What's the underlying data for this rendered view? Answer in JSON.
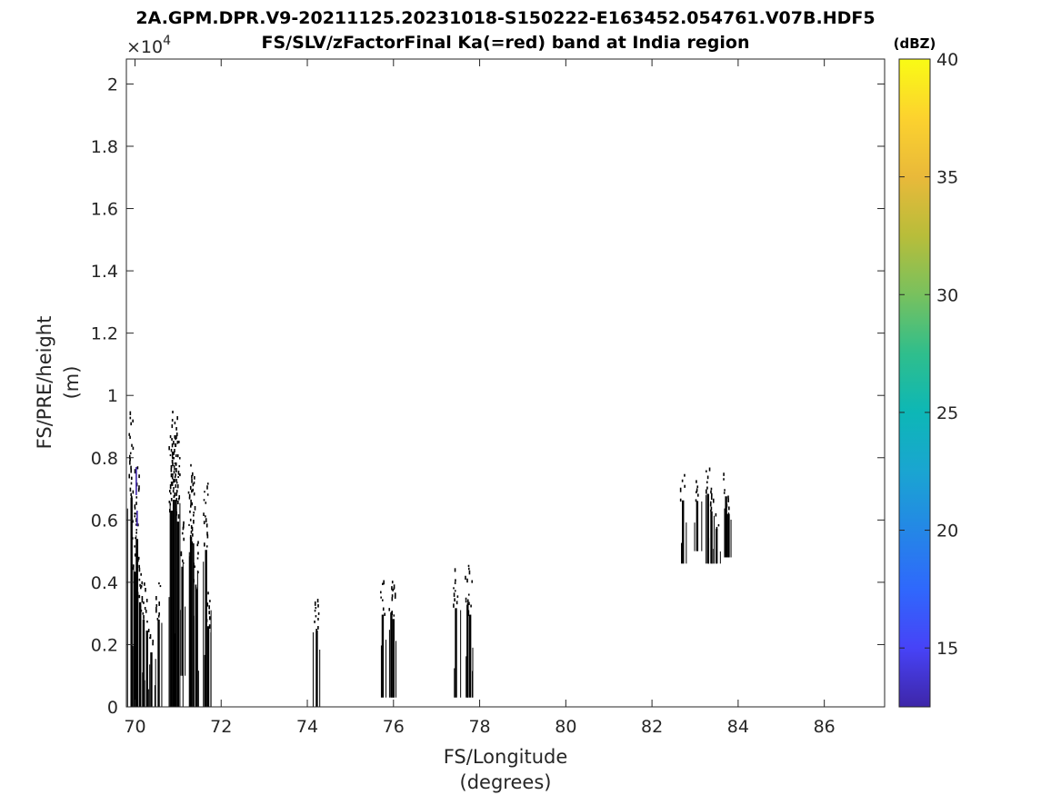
{
  "chart_data": {
    "type": "heatmap",
    "title": "2A.GPM.DPR.V9-20211125.20231018-S150222-E163452.054761.V07B.HDF5",
    "subtitle": "FS/SLV/zFactorFinal Ka(=red) band at India region",
    "xlabel": [
      "FS/Longitude",
      "(degrees)"
    ],
    "ylabel": [
      "FS/PRE/height",
      "(m)"
    ],
    "y_multiplier": "×10",
    "y_multiplier_exp": "4",
    "xlim": [
      69.8,
      87.4
    ],
    "ylim": [
      0,
      20800
    ],
    "x_ticks": [
      70,
      72,
      74,
      76,
      78,
      80,
      82,
      84,
      86
    ],
    "x_tick_labels": [
      "70",
      "72",
      "74",
      "76",
      "78",
      "80",
      "82",
      "84",
      "86"
    ],
    "y_ticks": [
      0,
      2000,
      4000,
      6000,
      8000,
      10000,
      12000,
      14000,
      16000,
      18000,
      20000
    ],
    "y_tick_labels": [
      "0",
      "0.2",
      "0.4",
      "0.6",
      "0.8",
      "1",
      "1.2",
      "1.4",
      "1.6",
      "1.8",
      "2"
    ],
    "colorbar": {
      "unit": "(dBZ)",
      "range": [
        12.5,
        40
      ],
      "ticks": [
        15,
        20,
        25,
        30,
        35,
        40
      ],
      "tick_labels": [
        "15",
        "20",
        "25",
        "30",
        "35",
        "40"
      ],
      "colormap": [
        "#3e26a8",
        "#4743f7",
        "#2f68fc",
        "#2487e6",
        "#1aa5d1",
        "#0db7b6",
        "#2fbe8c",
        "#78c15e",
        "#b8bd3a",
        "#e9b93a",
        "#fcd22e",
        "#f9fb15"
      ]
    },
    "mark_color": "#000000",
    "high_value_color": "#3e26a8",
    "profiles": [
      {
        "lon": 69.92,
        "bottom": 0,
        "top": 9600
      },
      {
        "lon": 70.0,
        "bottom": 0,
        "top": 6200
      },
      {
        "lon": 70.05,
        "bottom": 0,
        "top": 7700
      },
      {
        "lon": 70.12,
        "bottom": 0,
        "top": 4800
      },
      {
        "lon": 70.2,
        "bottom": 0,
        "top": 4000
      },
      {
        "lon": 70.28,
        "bottom": 0,
        "top": 3500
      },
      {
        "lon": 70.38,
        "bottom": 0,
        "top": 2500
      },
      {
        "lon": 70.55,
        "bottom": 0,
        "top": 4000
      },
      {
        "lon": 70.85,
        "bottom": 0,
        "top": 9000
      },
      {
        "lon": 70.9,
        "bottom": 0,
        "top": 9500
      },
      {
        "lon": 70.95,
        "bottom": 0,
        "top": 9500
      },
      {
        "lon": 71.0,
        "bottom": 0,
        "top": 8500
      },
      {
        "lon": 71.1,
        "bottom": 1000,
        "top": 6000
      },
      {
        "lon": 71.3,
        "bottom": 0,
        "top": 7800
      },
      {
        "lon": 71.35,
        "bottom": 0,
        "top": 7500
      },
      {
        "lon": 71.42,
        "bottom": 0,
        "top": 5400
      },
      {
        "lon": 71.65,
        "bottom": 0,
        "top": 7200
      },
      {
        "lon": 71.7,
        "bottom": 0,
        "top": 3700
      },
      {
        "lon": 74.22,
        "bottom": 0,
        "top": 3500
      },
      {
        "lon": 75.75,
        "bottom": 300,
        "top": 4100
      },
      {
        "lon": 75.95,
        "bottom": 300,
        "top": 4200
      },
      {
        "lon": 76.0,
        "bottom": 300,
        "top": 3900
      },
      {
        "lon": 77.45,
        "bottom": 300,
        "top": 4400
      },
      {
        "lon": 77.72,
        "bottom": 300,
        "top": 4550
      },
      {
        "lon": 77.78,
        "bottom": 300,
        "top": 4100
      },
      {
        "lon": 82.72,
        "bottom": 4600,
        "top": 7500
      },
      {
        "lon": 83.05,
        "bottom": 5000,
        "top": 7300
      },
      {
        "lon": 83.3,
        "bottom": 4600,
        "top": 7800
      },
      {
        "lon": 83.38,
        "bottom": 4600,
        "top": 7000
      },
      {
        "lon": 83.5,
        "bottom": 4600,
        "top": 6200
      },
      {
        "lon": 83.72,
        "bottom": 4800,
        "top": 7600
      },
      {
        "lon": 83.78,
        "bottom": 4800,
        "top": 6800
      }
    ]
  }
}
